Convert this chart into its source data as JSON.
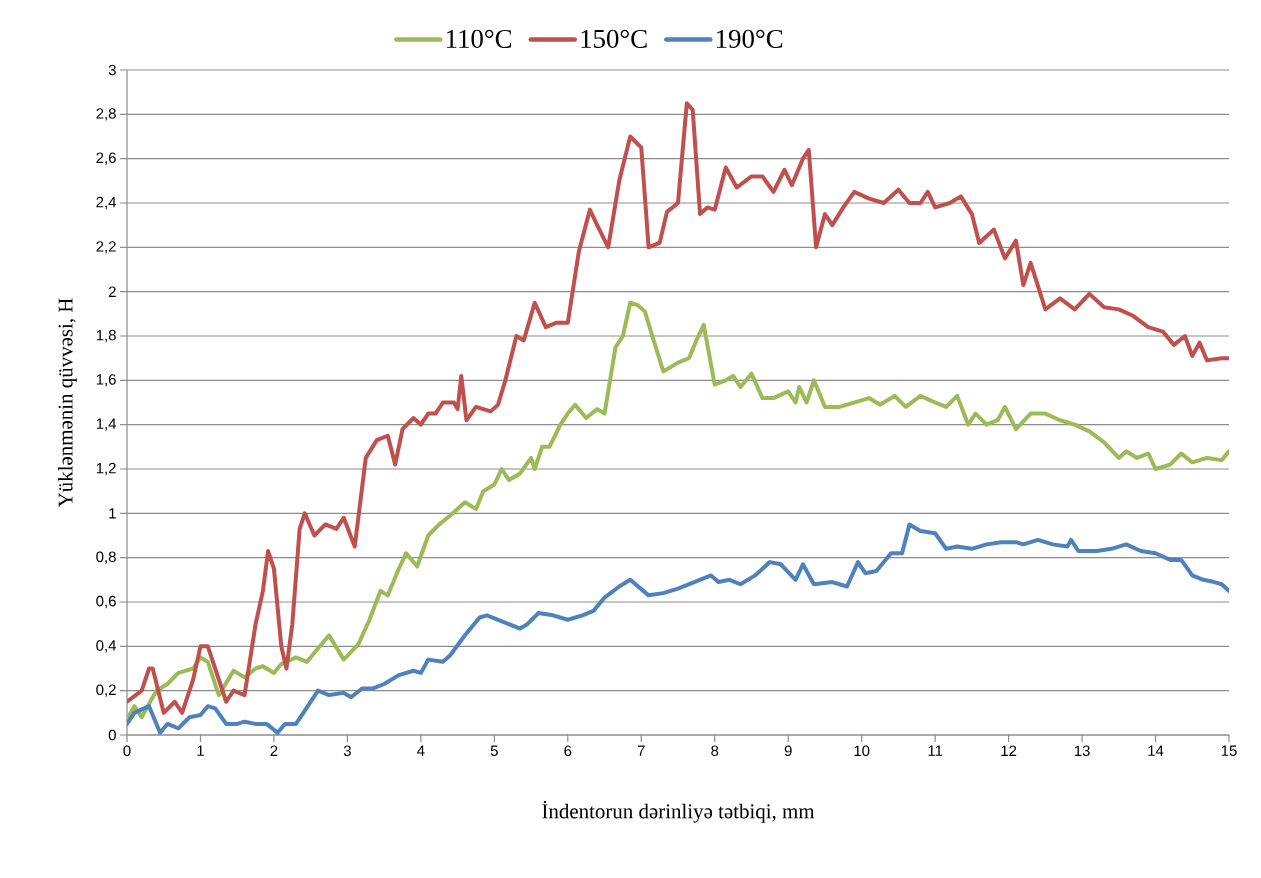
{
  "chart_data": {
    "type": "line",
    "xlabel": "İndentorun dərinliyə tətbiqi, mm",
    "ylabel": "Yüklənmənin qüvvəsi, H",
    "xlim": [
      0,
      15
    ],
    "xticks": [
      0,
      1,
      2,
      3,
      4,
      5,
      6,
      7,
      8,
      9,
      10,
      11,
      12,
      13,
      14,
      15
    ],
    "ylim": [
      0,
      3
    ],
    "yticks": [
      0,
      {
        "value": 0.2,
        "label": "0,2"
      },
      {
        "value": 0.4,
        "label": "0,4"
      },
      {
        "value": 0.6,
        "label": "0,6"
      },
      {
        "value": 0.8,
        "label": "0,8"
      },
      1,
      {
        "value": 1.2,
        "label": "1,2"
      },
      {
        "value": 1.4,
        "label": "1,4"
      },
      {
        "value": 1.6,
        "label": "1,6"
      },
      {
        "value": 1.8,
        "label": "1,8"
      },
      2,
      {
        "value": 2.2,
        "label": "2,2"
      },
      {
        "value": 2.4,
        "label": "2,4"
      },
      {
        "value": 2.6,
        "label": "2,6"
      },
      {
        "value": 2.8,
        "label": "2,8"
      },
      3
    ],
    "grid": "y",
    "legend": "top",
    "marker": "none",
    "line_style": "solid",
    "series": [
      {
        "name": "110°C",
        "color": "#9bbb59",
        "x": [
          0,
          0.1,
          0.2,
          0.35,
          0.4,
          0.55,
          0.7,
          0.9,
          1.0,
          1.1,
          1.25,
          1.45,
          1.6,
          1.75,
          1.85,
          2.0,
          2.1,
          2.3,
          2.45,
          2.6,
          2.75,
          2.95,
          3.15,
          3.3,
          3.45,
          3.55,
          3.7,
          3.8,
          3.95,
          4.1,
          4.25,
          4.4,
          4.6,
          4.75,
          4.85,
          5.0,
          5.1,
          5.2,
          5.35,
          5.5,
          5.55,
          5.65,
          5.75,
          5.9,
          6.0,
          6.1,
          6.25,
          6.4,
          6.5,
          6.65,
          6.75,
          6.85,
          6.95,
          7.05,
          7.15,
          7.3,
          7.5,
          7.65,
          7.75,
          7.85,
          8.0,
          8.15,
          8.25,
          8.35,
          8.5,
          8.65,
          8.8,
          9.0,
          9.1,
          9.15,
          9.25,
          9.35,
          9.5,
          9.7,
          9.9,
          10.1,
          10.25,
          10.45,
          10.6,
          10.8,
          11.0,
          11.15,
          11.3,
          11.45,
          11.55,
          11.7,
          11.85,
          11.95,
          12.1,
          12.3,
          12.5,
          12.7,
          12.9,
          13.1,
          13.3,
          13.5,
          13.6,
          13.75,
          13.9,
          14.0,
          14.2,
          14.35,
          14.5,
          14.7,
          14.9,
          15.0
        ],
        "values": [
          0.07,
          0.13,
          0.08,
          0.17,
          0.2,
          0.23,
          0.28,
          0.3,
          0.35,
          0.33,
          0.18,
          0.29,
          0.26,
          0.3,
          0.31,
          0.28,
          0.32,
          0.35,
          0.33,
          0.39,
          0.45,
          0.34,
          0.41,
          0.52,
          0.65,
          0.63,
          0.75,
          0.82,
          0.76,
          0.9,
          0.95,
          0.99,
          1.05,
          1.02,
          1.1,
          1.13,
          1.2,
          1.15,
          1.18,
          1.25,
          1.2,
          1.3,
          1.3,
          1.4,
          1.45,
          1.49,
          1.43,
          1.47,
          1.45,
          1.75,
          1.8,
          1.95,
          1.94,
          1.91,
          1.8,
          1.64,
          1.68,
          1.7,
          1.78,
          1.85,
          1.58,
          1.6,
          1.62,
          1.57,
          1.63,
          1.52,
          1.52,
          1.55,
          1.5,
          1.57,
          1.5,
          1.6,
          1.48,
          1.48,
          1.5,
          1.52,
          1.49,
          1.53,
          1.48,
          1.53,
          1.5,
          1.48,
          1.53,
          1.4,
          1.45,
          1.4,
          1.42,
          1.48,
          1.38,
          1.45,
          1.45,
          1.42,
          1.4,
          1.37,
          1.32,
          1.25,
          1.28,
          1.25,
          1.27,
          1.2,
          1.22,
          1.27,
          1.23,
          1.25,
          1.24,
          1.28
        ]
      },
      {
        "name": "150°C",
        "color": "#c0504d",
        "x": [
          0,
          0.2,
          0.3,
          0.35,
          0.5,
          0.65,
          0.75,
          0.9,
          1.0,
          1.1,
          1.2,
          1.35,
          1.45,
          1.6,
          1.75,
          1.85,
          1.92,
          2.0,
          2.1,
          2.17,
          2.25,
          2.35,
          2.42,
          2.55,
          2.7,
          2.85,
          2.95,
          3.1,
          3.25,
          3.4,
          3.55,
          3.65,
          3.75,
          3.9,
          4.0,
          4.1,
          4.2,
          4.3,
          4.45,
          4.5,
          4.55,
          4.62,
          4.75,
          4.95,
          5.05,
          5.15,
          5.3,
          5.4,
          5.55,
          5.7,
          5.85,
          6.0,
          6.15,
          6.3,
          6.4,
          6.55,
          6.7,
          6.85,
          7.0,
          7.1,
          7.25,
          7.35,
          7.5,
          7.62,
          7.7,
          7.8,
          7.9,
          8.0,
          8.15,
          8.3,
          8.5,
          8.65,
          8.8,
          8.95,
          9.05,
          9.2,
          9.28,
          9.38,
          9.5,
          9.6,
          9.75,
          9.9,
          10.1,
          10.3,
          10.5,
          10.65,
          10.8,
          10.9,
          11.0,
          11.2,
          11.35,
          11.5,
          11.6,
          11.8,
          11.95,
          12.1,
          12.2,
          12.3,
          12.5,
          12.7,
          12.9,
          13.1,
          13.3,
          13.5,
          13.7,
          13.9,
          14.1,
          14.25,
          14.4,
          14.5,
          14.6,
          14.7,
          14.9,
          15.0
        ],
        "values": [
          0.15,
          0.2,
          0.3,
          0.3,
          0.1,
          0.15,
          0.1,
          0.25,
          0.4,
          0.4,
          0.3,
          0.15,
          0.2,
          0.18,
          0.5,
          0.65,
          0.83,
          0.75,
          0.4,
          0.3,
          0.5,
          0.93,
          1.0,
          0.9,
          0.95,
          0.93,
          0.98,
          0.85,
          1.25,
          1.33,
          1.35,
          1.22,
          1.38,
          1.43,
          1.4,
          1.45,
          1.45,
          1.5,
          1.5,
          1.47,
          1.62,
          1.42,
          1.48,
          1.46,
          1.49,
          1.6,
          1.8,
          1.78,
          1.95,
          1.84,
          1.86,
          1.86,
          2.18,
          2.37,
          2.3,
          2.2,
          2.5,
          2.7,
          2.65,
          2.2,
          2.22,
          2.36,
          2.4,
          2.85,
          2.82,
          2.35,
          2.38,
          2.37,
          2.56,
          2.47,
          2.52,
          2.52,
          2.45,
          2.55,
          2.48,
          2.6,
          2.64,
          2.2,
          2.35,
          2.3,
          2.38,
          2.45,
          2.42,
          2.4,
          2.46,
          2.4,
          2.4,
          2.45,
          2.38,
          2.4,
          2.43,
          2.35,
          2.22,
          2.28,
          2.15,
          2.23,
          2.03,
          2.13,
          1.92,
          1.97,
          1.92,
          1.99,
          1.93,
          1.92,
          1.89,
          1.84,
          1.82,
          1.76,
          1.8,
          1.71,
          1.77,
          1.69,
          1.7,
          1.7
        ]
      },
      {
        "name": "190°C",
        "color": "#4f81bd",
        "x": [
          0,
          0.1,
          0.3,
          0.45,
          0.55,
          0.7,
          0.85,
          1.0,
          1.1,
          1.2,
          1.35,
          1.5,
          1.6,
          1.75,
          1.9,
          2.05,
          2.15,
          2.3,
          2.4,
          2.6,
          2.75,
          2.95,
          3.05,
          3.2,
          3.35,
          3.5,
          3.7,
          3.9,
          4.0,
          4.1,
          4.3,
          4.4,
          4.6,
          4.8,
          4.9,
          5.05,
          5.2,
          5.35,
          5.45,
          5.6,
          5.8,
          6.0,
          6.2,
          6.35,
          6.5,
          6.7,
          6.85,
          7.1,
          7.3,
          7.5,
          7.65,
          7.8,
          7.95,
          8.05,
          8.2,
          8.35,
          8.55,
          8.75,
          8.9,
          9.1,
          9.2,
          9.35,
          9.6,
          9.8,
          9.95,
          10.05,
          10.2,
          10.4,
          10.55,
          10.65,
          10.8,
          11.0,
          11.15,
          11.3,
          11.5,
          11.7,
          11.9,
          12.1,
          12.2,
          12.4,
          12.6,
          12.8,
          12.85,
          12.95,
          13.2,
          13.4,
          13.6,
          13.8,
          14.0,
          14.2,
          14.35,
          14.5,
          14.65,
          14.8,
          14.9,
          15.0
        ],
        "values": [
          0.05,
          0.1,
          0.13,
          0.01,
          0.05,
          0.03,
          0.08,
          0.09,
          0.13,
          0.12,
          0.05,
          0.05,
          0.06,
          0.05,
          0.05,
          0.01,
          0.05,
          0.05,
          0.1,
          0.2,
          0.18,
          0.19,
          0.17,
          0.21,
          0.21,
          0.23,
          0.27,
          0.29,
          0.28,
          0.34,
          0.33,
          0.36,
          0.45,
          0.53,
          0.54,
          0.52,
          0.5,
          0.48,
          0.5,
          0.55,
          0.54,
          0.52,
          0.54,
          0.56,
          0.62,
          0.67,
          0.7,
          0.63,
          0.64,
          0.66,
          0.68,
          0.7,
          0.72,
          0.69,
          0.7,
          0.68,
          0.72,
          0.78,
          0.77,
          0.7,
          0.77,
          0.68,
          0.69,
          0.67,
          0.78,
          0.73,
          0.74,
          0.82,
          0.82,
          0.95,
          0.92,
          0.91,
          0.84,
          0.85,
          0.84,
          0.86,
          0.87,
          0.87,
          0.86,
          0.88,
          0.86,
          0.85,
          0.88,
          0.83,
          0.83,
          0.84,
          0.86,
          0.83,
          0.82,
          0.79,
          0.79,
          0.72,
          0.7,
          0.69,
          0.68,
          0.65
        ]
      }
    ]
  }
}
